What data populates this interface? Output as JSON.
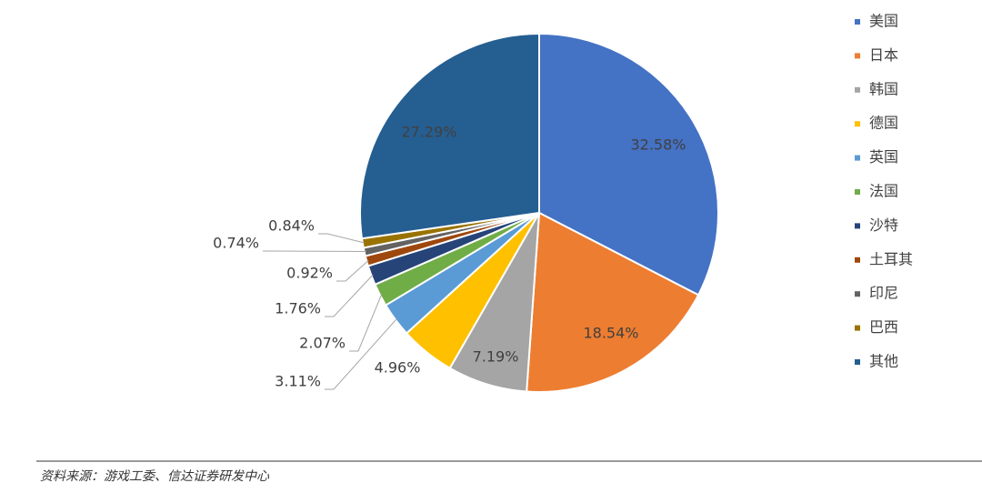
{
  "chart_data": {
    "type": "pie",
    "categories": [
      "美国",
      "日本",
      "韩国",
      "德国",
      "英国",
      "法国",
      "沙特",
      "土耳其",
      "印尼",
      "巴西",
      "其他"
    ],
    "values": [
      32.58,
      18.54,
      7.19,
      4.96,
      3.11,
      2.07,
      1.76,
      0.92,
      0.74,
      0.84,
      27.29
    ],
    "value_labels": [
      "32.58%",
      "18.54%",
      "7.19%",
      "4.96%",
      "3.11%",
      "2.07%",
      "1.76%",
      "0.92%",
      "0.74%",
      "0.84%",
      "27.29%"
    ],
    "colors": [
      "#4472c4",
      "#ed7d31",
      "#a5a5a5",
      "#ffc000",
      "#5b9bd5",
      "#70ad47",
      "#264478",
      "#9e480e",
      "#636363",
      "#997300",
      "#255e91"
    ],
    "legend": "right",
    "source": "资料来源：游戏工委、信达证券研发中心"
  }
}
